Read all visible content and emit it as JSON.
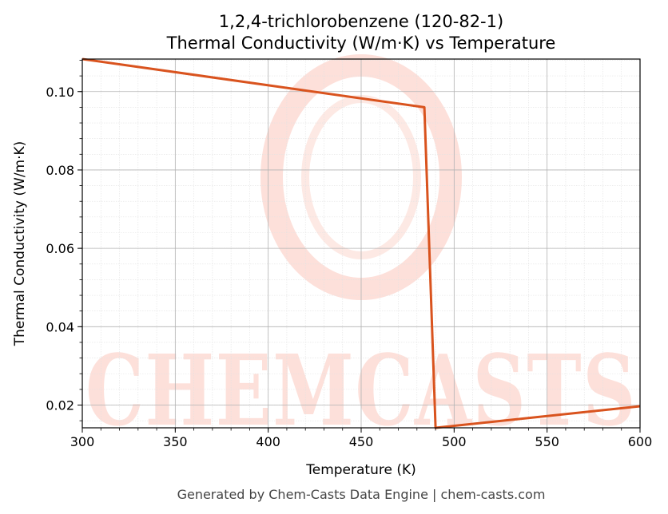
{
  "chart_data": {
    "type": "line",
    "title": "1,2,4-trichlorobenzene (120-82-1)",
    "subtitle": "Thermal Conductivity (W/m·K) vs Temperature",
    "xlabel": "Temperature (K)",
    "ylabel": "Thermal Conductivity (W/m·K)",
    "xlim": [
      300,
      600
    ],
    "ylim": [
      0.0142,
      0.1083
    ],
    "x_ticks": [
      300,
      350,
      400,
      450,
      500,
      550,
      600
    ],
    "y_ticks": [
      0.02,
      0.04,
      0.06,
      0.08,
      0.1
    ],
    "x_tick_labels": [
      "300",
      "350",
      "400",
      "450",
      "500",
      "550",
      "600"
    ],
    "y_tick_labels": [
      "0.02",
      "0.04",
      "0.06",
      "0.08",
      "0.10"
    ],
    "grid": true,
    "series": [
      {
        "color": "#d9531e",
        "points": [
          [
            300,
            0.1083
          ],
          [
            484,
            0.096
          ],
          [
            490,
            0.0142
          ],
          [
            600,
            0.0197
          ]
        ]
      }
    ]
  },
  "watermark": {
    "text": "CHEMCASTS"
  },
  "footer": "Generated by Chem-Casts Data Engine | chem-casts.com"
}
